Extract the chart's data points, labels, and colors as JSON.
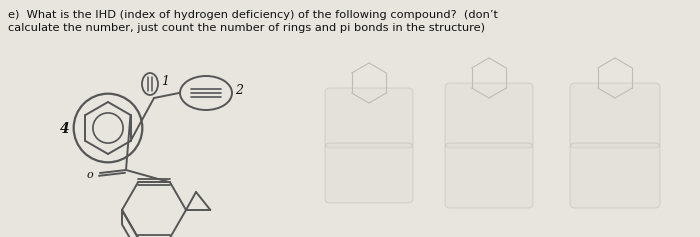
{
  "title_line1": "e)  What is the IHD (index of hydrogen deficiency) of the following compound?  (don’t",
  "title_line2": "calculate the number, just count the number of rings and pi bonds in the structure)",
  "bg_color": "#e8e5df",
  "text_color": "#111111",
  "line_color": "#555555",
  "label_4": "4",
  "label_1": "1",
  "label_2": "2",
  "label_o": "o"
}
